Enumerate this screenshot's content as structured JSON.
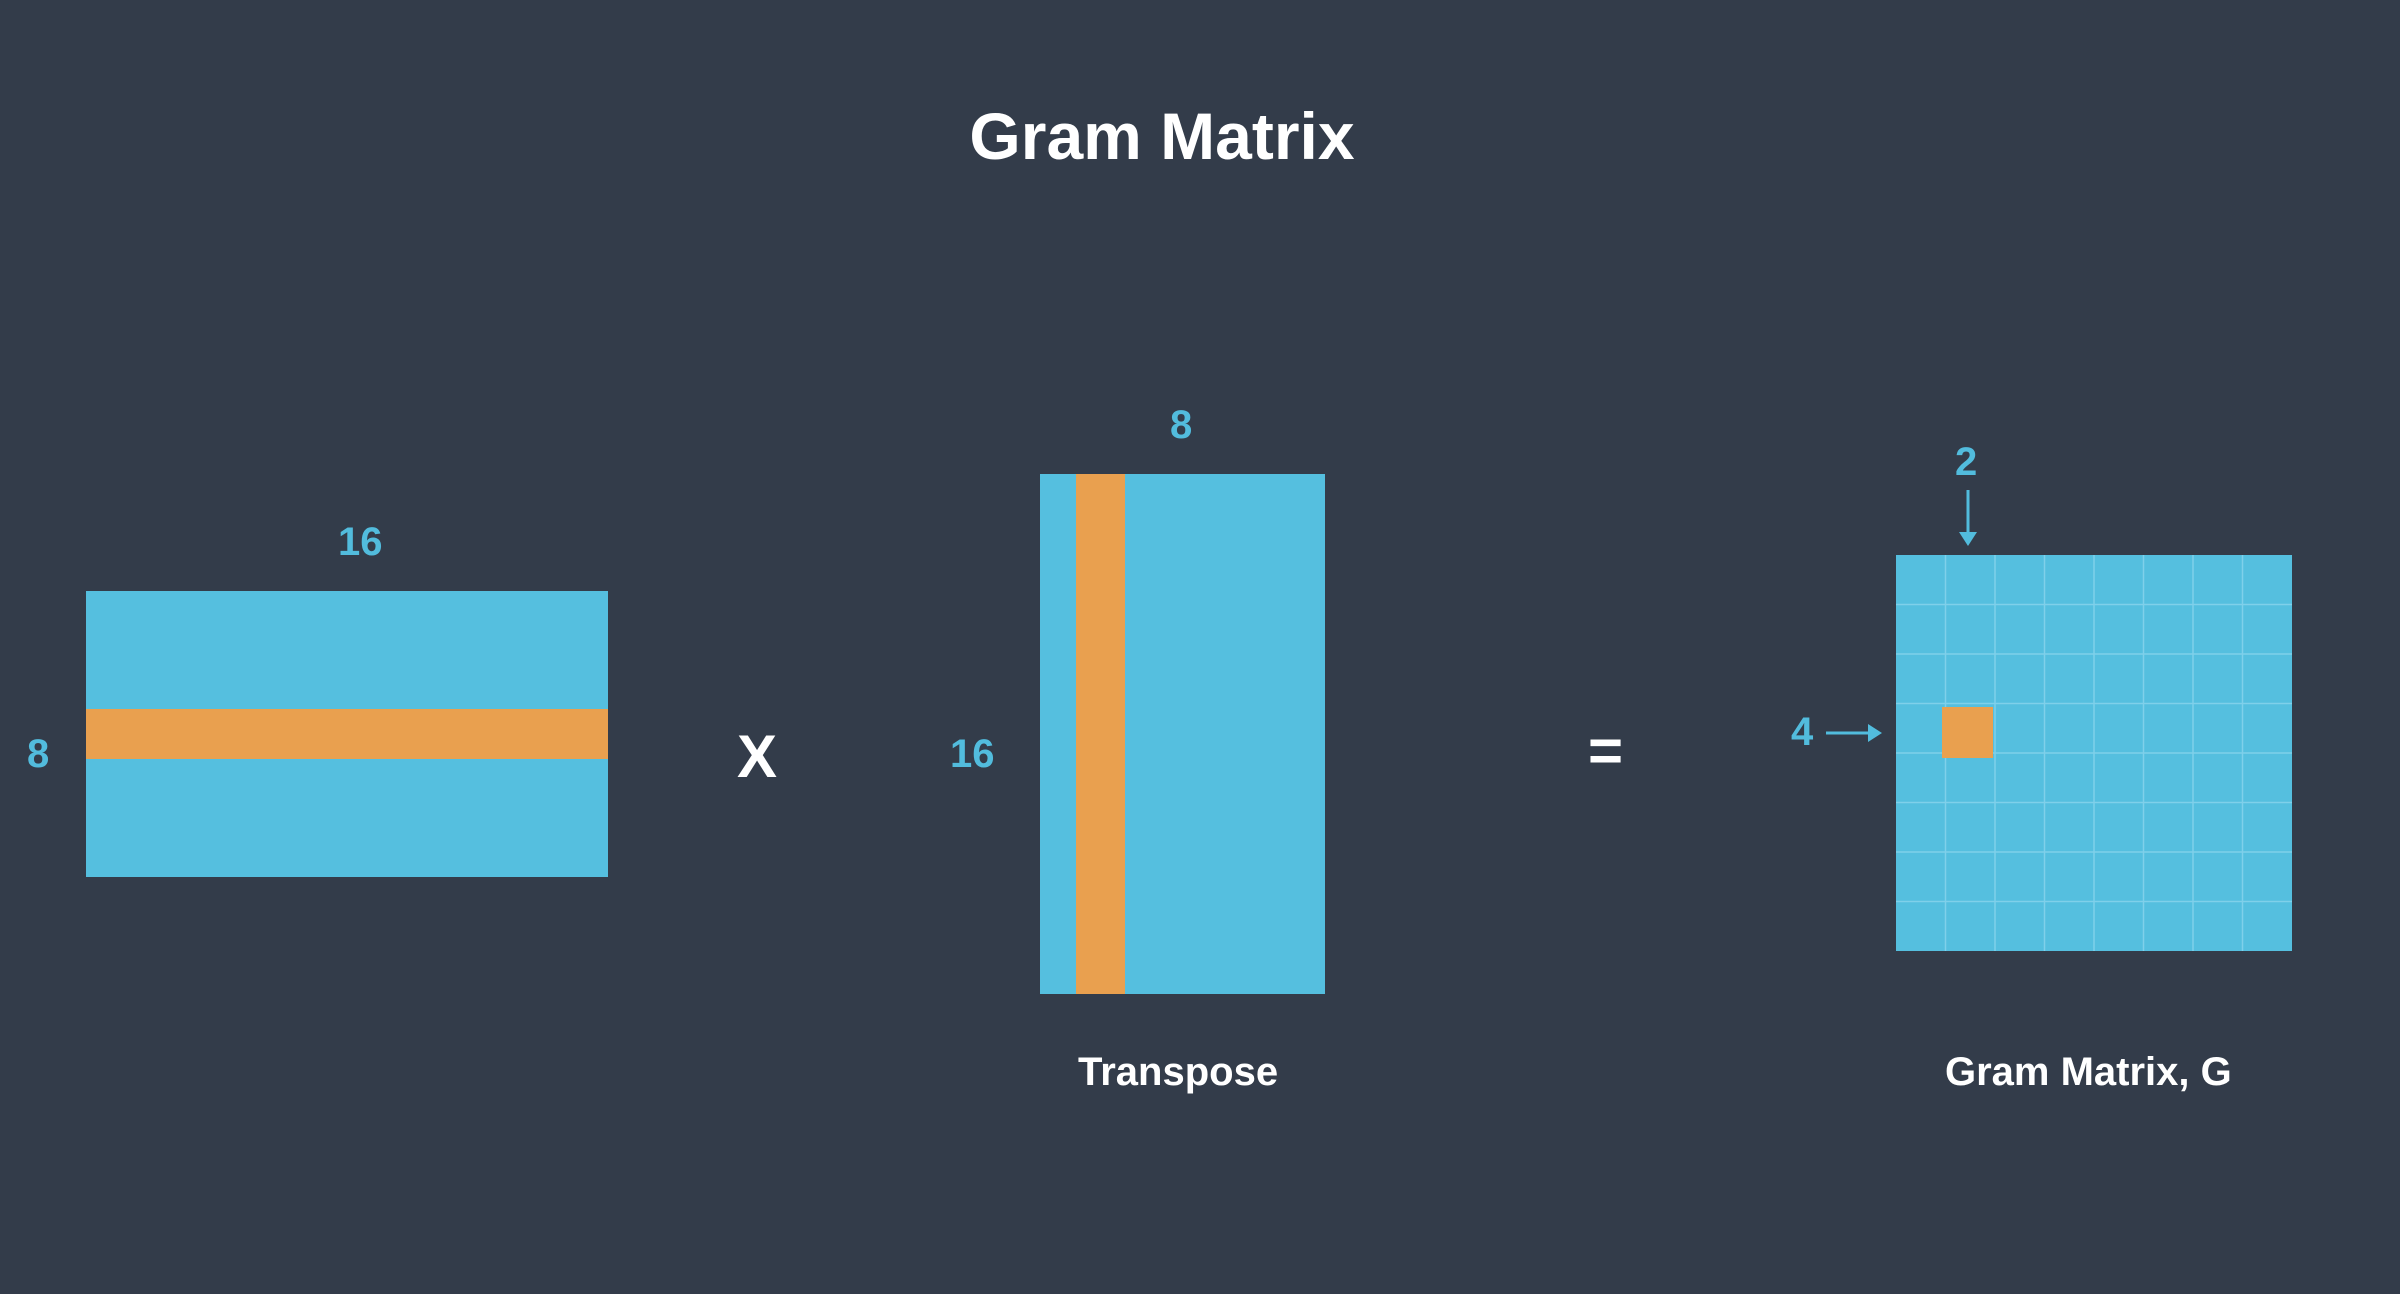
{
  "title": "Gram Matrix",
  "colors": {
    "background": "#333c4a",
    "matrix": "#55bfdf",
    "highlight": "#e9a04f",
    "label": "#52bcdd",
    "text": "#ffffff"
  },
  "feature_matrix": {
    "cols_label": "16",
    "rows_label": "8"
  },
  "operator_multiply": "X",
  "transpose_matrix": {
    "cols_label": "8",
    "rows_label": "16",
    "caption": "Transpose"
  },
  "operator_equals": "=",
  "gram_matrix": {
    "col_index_label": "2",
    "row_index_label": "4",
    "caption": "Gram Matrix, G"
  }
}
